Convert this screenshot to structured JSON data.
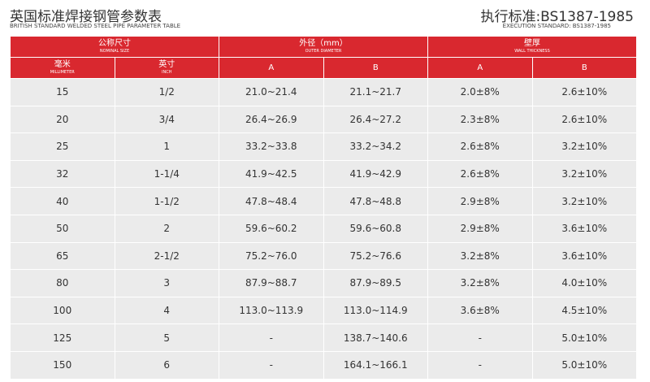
{
  "header": {
    "title": "英国标准焊接钢管参数表",
    "subtitle": "BRITISH STANDARD WELDED STEEL PIPE PARAMETER TABLE",
    "standard": "执行标准:BS1387-1985",
    "standard_en": "EXECUTION STANDARD: BS1387-1985"
  },
  "table": {
    "groups": [
      {
        "label": "公称尺寸",
        "sublabel": "NOMINAL SIZE"
      },
      {
        "label": "外径（mm）",
        "sublabel": "OUTER DIAMETER"
      },
      {
        "label": "壁厚",
        "sublabel": "WALL THICKNESS"
      }
    ],
    "columns": [
      {
        "label": "毫米",
        "sublabel": "MILLIMETER"
      },
      {
        "label": "英寸",
        "sublabel": "INCH"
      },
      {
        "label": "A"
      },
      {
        "label": "B"
      },
      {
        "label": "A"
      },
      {
        "label": "B"
      }
    ],
    "rows": [
      [
        "15",
        "1/2",
        "21.0~21.4",
        "21.1~21.7",
        "2.0±8%",
        "2.6±10%"
      ],
      [
        "20",
        "3/4",
        "26.4~26.9",
        "26.4~27.2",
        "2.3±8%",
        "2.6±10%"
      ],
      [
        "25",
        "1",
        "33.2~33.8",
        "33.2~34.2",
        "2.6±8%",
        "3.2±10%"
      ],
      [
        "32",
        "1-1/4",
        "41.9~42.5",
        "41.9~42.9",
        "2.6±8%",
        "3.2±10%"
      ],
      [
        "40",
        "1-1/2",
        "47.8~48.4",
        "47.8~48.8",
        "2.9±8%",
        "3.2±10%"
      ],
      [
        "50",
        "2",
        "59.6~60.2",
        "59.6~60.8",
        "2.9±8%",
        "3.6±10%"
      ],
      [
        "65",
        "2-1/2",
        "75.2~76.0",
        "75.2~76.6",
        "3.2±8%",
        "3.6±10%"
      ],
      [
        "80",
        "3",
        "87.9~88.7",
        "87.9~89.5",
        "3.2±8%",
        "4.0±10%"
      ],
      [
        "100",
        "4",
        "113.0~113.9",
        "113.0~114.9",
        "3.6±8%",
        "4.5±10%"
      ],
      [
        "125",
        "5",
        "-",
        "138.7~140.6",
        "-",
        "5.0±10%"
      ],
      [
        "150",
        "6",
        "-",
        "164.1~166.1",
        "-",
        "5.0±10%"
      ]
    ]
  }
}
